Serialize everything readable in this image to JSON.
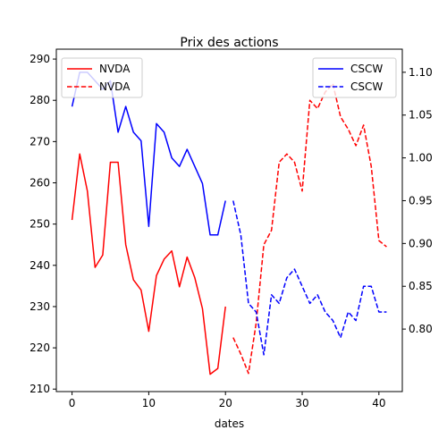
{
  "chart_data": {
    "type": "line",
    "title": "Prix des actions",
    "xlabel": "dates",
    "ylabel_left": "",
    "ylabel_right": "",
    "xlim": [
      -2.05,
      43.05
    ],
    "ylim_left": [
      209.4,
      292.4
    ],
    "ylim_right": [
      0.727,
      1.127
    ],
    "x_ticks": [
      0,
      10,
      20,
      30,
      40
    ],
    "y_left_ticks": [
      210,
      220,
      230,
      240,
      250,
      260,
      270,
      280,
      290
    ],
    "y_right_ticks": [
      0.8,
      0.85,
      0.9,
      0.95,
      1.0,
      1.05,
      1.1
    ],
    "y_right_tick_labels": [
      "0.80",
      "0.85",
      "0.90",
      "0.95",
      "1.00",
      "1.05",
      "1.10"
    ],
    "grid": false,
    "legends": [
      {
        "placement": "top-left",
        "axis": "left",
        "entries": [
          "NVDA",
          "NVDA"
        ]
      },
      {
        "placement": "top-right",
        "axis": "right",
        "entries": [
          "CSCW",
          "CSCW"
        ]
      }
    ],
    "series": [
      {
        "name": "NVDA",
        "axis": "left",
        "color": "#ff0000",
        "style": "solid",
        "x": [
          0,
          1,
          2,
          3,
          4,
          5,
          6,
          7,
          8,
          9,
          10,
          11,
          12,
          13,
          14,
          15,
          16,
          17,
          18,
          19,
          20
        ],
        "values": [
          251,
          267,
          258,
          239.5,
          242.5,
          265,
          265,
          245,
          236.5,
          234,
          224,
          237.5,
          241.5,
          243.5,
          234.8,
          242,
          237,
          229.5,
          213.6,
          215,
          230
        ]
      },
      {
        "name": "NVDA",
        "axis": "left",
        "color": "#ff0000",
        "style": "dashed",
        "x": [
          21,
          22,
          23,
          24,
          25,
          26,
          27,
          28,
          29,
          30,
          31,
          32,
          33,
          34,
          35,
          36,
          37,
          38,
          39,
          40,
          41
        ],
        "values": [
          222.5,
          218.5,
          213.8,
          226,
          245,
          248.5,
          265,
          267,
          265,
          258,
          280,
          278,
          282,
          284,
          276,
          273,
          269,
          274,
          264,
          246,
          244.5
        ]
      },
      {
        "name": "CSCW",
        "axis": "right",
        "color": "#0000ff",
        "style": "solid",
        "x": [
          0,
          1,
          2,
          3,
          4,
          5,
          6,
          7,
          8,
          9,
          10,
          11,
          12,
          13,
          14,
          15,
          16,
          17,
          18,
          19,
          20
        ],
        "values": [
          1.06,
          1.1,
          1.1,
          1.09,
          1.08,
          1.09,
          1.03,
          1.06,
          1.03,
          1.02,
          0.92,
          1.04,
          1.03,
          1.0,
          0.99,
          1.01,
          0.99,
          0.97,
          0.91,
          0.91,
          0.95
        ]
      },
      {
        "name": "CSCW",
        "axis": "right",
        "color": "#0000ff",
        "style": "dashed",
        "x": [
          21,
          22,
          23,
          24,
          25,
          26,
          27,
          28,
          29,
          30,
          31,
          32,
          33,
          34,
          35,
          36,
          37,
          38,
          39,
          40,
          41
        ],
        "values": [
          0.95,
          0.91,
          0.83,
          0.82,
          0.77,
          0.84,
          0.83,
          0.86,
          0.87,
          0.85,
          0.83,
          0.84,
          0.82,
          0.81,
          0.79,
          0.82,
          0.81,
          0.85,
          0.85,
          0.82,
          0.82
        ]
      }
    ]
  }
}
